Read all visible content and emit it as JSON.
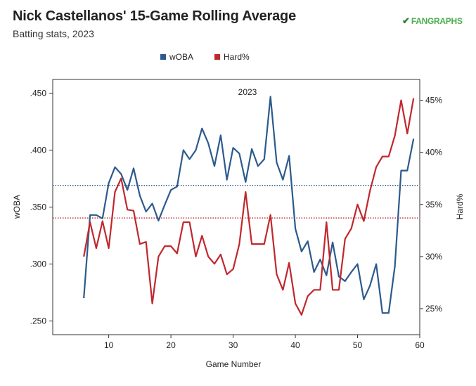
{
  "header": {
    "title": "Nick Castellanos' 15-Game Rolling Average",
    "subtitle": "Batting stats, 2023",
    "logo_text": "FANGRAPHS"
  },
  "colors": {
    "woba": "#2c5a8c",
    "hard": "#c1272d",
    "woba_ref": "#2c5a8c",
    "hard_ref": "#c1272d"
  },
  "chart_data": {
    "type": "line",
    "title": "Nick Castellanos' 15-Game Rolling Average",
    "subtitle": "Batting stats, 2023",
    "panel_label": "2023",
    "xlabel": "Game Number",
    "ylabel_left": "wOBA",
    "ylabel_right": "Hard%",
    "xlim": [
      1,
      60
    ],
    "ylim_left": [
      0.238,
      0.462
    ],
    "ylim_right": [
      22.5,
      47.0
    ],
    "x_ticks": [
      10,
      20,
      30,
      40,
      50,
      60
    ],
    "x_tick_labels": [
      "10",
      "20",
      "30",
      "40",
      "50",
      "60"
    ],
    "y_left_ticks": [
      0.25,
      0.3,
      0.35,
      0.4,
      0.45
    ],
    "y_left_tick_labels": [
      ".250",
      ".300",
      ".350",
      ".400",
      ".450"
    ],
    "y_right_ticks": [
      25,
      30,
      35,
      40,
      45
    ],
    "y_right_tick_labels": [
      "25%",
      "30%",
      "35%",
      "40%",
      "45%"
    ],
    "legend": {
      "placement": "top-center"
    },
    "reference_lines": [
      {
        "series": "wOBA",
        "value": 0.369,
        "style": "dotted"
      },
      {
        "series": "Hard%",
        "value": 33.7,
        "style": "dotted"
      }
    ],
    "x": [
      6,
      7,
      8,
      9,
      10,
      11,
      12,
      13,
      14,
      15,
      16,
      17,
      18,
      19,
      20,
      21,
      22,
      23,
      24,
      25,
      26,
      27,
      28,
      29,
      30,
      31,
      32,
      33,
      34,
      35,
      36,
      37,
      38,
      39,
      40,
      41,
      42,
      43,
      44,
      45,
      46,
      47,
      48,
      49,
      50,
      51,
      52,
      53,
      54,
      55,
      56,
      57,
      58,
      59
    ],
    "series": [
      {
        "name": "wOBA",
        "axis": "left",
        "values": [
          0.27,
          0.343,
          0.343,
          0.34,
          0.371,
          0.385,
          0.379,
          0.365,
          0.384,
          0.36,
          0.346,
          0.353,
          0.338,
          0.352,
          0.365,
          0.368,
          0.4,
          0.392,
          0.4,
          0.419,
          0.406,
          0.386,
          0.413,
          0.374,
          0.402,
          0.397,
          0.372,
          0.401,
          0.386,
          0.392,
          0.447,
          0.389,
          0.374,
          0.395,
          0.331,
          0.311,
          0.32,
          0.293,
          0.304,
          0.29,
          0.319,
          0.289,
          0.285,
          0.293,
          0.3,
          0.269,
          0.281,
          0.3,
          0.257,
          0.257,
          0.298,
          0.382,
          0.382,
          0.41
        ]
      },
      {
        "name": "Hard%",
        "axis": "right",
        "values": [
          30.0,
          33.3,
          30.8,
          33.4,
          30.8,
          36.2,
          37.5,
          34.5,
          34.4,
          31.2,
          31.4,
          25.5,
          30.0,
          31.0,
          31.0,
          30.3,
          33.3,
          33.3,
          30.0,
          32.0,
          30.0,
          29.3,
          30.2,
          28.3,
          28.8,
          31.2,
          36.2,
          31.2,
          31.2,
          31.2,
          34.0,
          28.3,
          26.8,
          29.4,
          25.5,
          24.4,
          26.2,
          26.8,
          26.8,
          33.3,
          26.8,
          26.8,
          31.7,
          32.7,
          35.0,
          33.4,
          36.3,
          38.6,
          39.6,
          39.6,
          41.6,
          45.0,
          41.8,
          45.2
        ]
      }
    ]
  }
}
